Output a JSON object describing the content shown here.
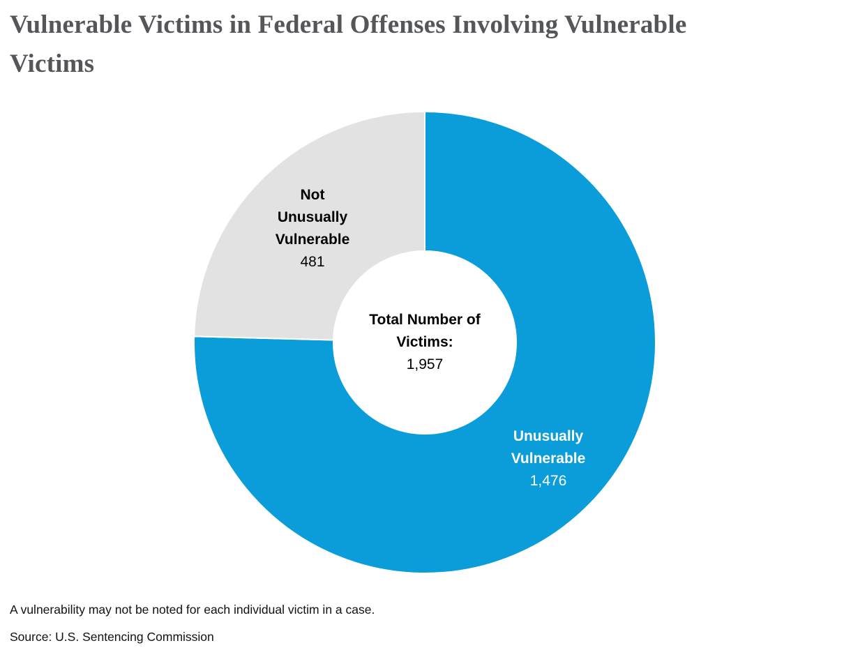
{
  "page": {
    "title": "Vulnerable Victims in Federal Offenses Involving Vulnerable Victims",
    "footnote": "A vulnerability may not be noted for each individual victim in a case.",
    "source": "Source: U.S. Sentencing Commission"
  },
  "chart_data": {
    "type": "pie",
    "subtype": "donut",
    "title": "Vulnerable Victims in Federal Offenses Involving Vulnerable Victims",
    "start_angle_deg": 0,
    "direction": "clockwise",
    "total": 1957,
    "center_label": "Total Number of Victims:",
    "center_value": "1,957",
    "legend_position": "none",
    "slices": [
      {
        "label": "Unusually Vulnerable",
        "value": 1476,
        "value_formatted": "1,476",
        "color": "#0b9dda",
        "label_color": "#ffffff"
      },
      {
        "label": "Not Unusually Vulnerable",
        "value": 481,
        "value_formatted": "481",
        "color": "#e2e2e2",
        "label_color": "#000000"
      }
    ]
  }
}
